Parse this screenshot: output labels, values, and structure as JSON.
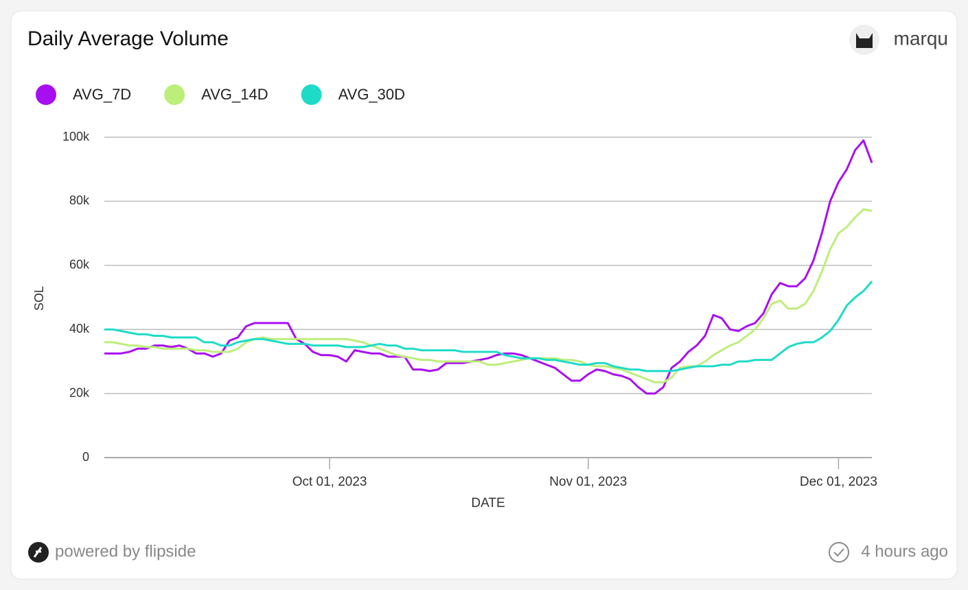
{
  "chart_data": {
    "type": "line",
    "title": "Daily Average Volume",
    "x_label": "DATE",
    "y_label": "SOL",
    "x": [
      "2023-09-04",
      "2023-09-05",
      "2023-09-06",
      "2023-09-07",
      "2023-09-08",
      "2023-09-09",
      "2023-09-10",
      "2023-09-11",
      "2023-09-12",
      "2023-09-13",
      "2023-09-14",
      "2023-09-15",
      "2023-09-16",
      "2023-09-17",
      "2023-09-18",
      "2023-09-19",
      "2023-09-20",
      "2023-09-21",
      "2023-09-22",
      "2023-09-23",
      "2023-09-24",
      "2023-09-25",
      "2023-09-26",
      "2023-09-27",
      "2023-09-28",
      "2023-09-29",
      "2023-09-30",
      "2023-10-01",
      "2023-10-02",
      "2023-10-03",
      "2023-10-04",
      "2023-10-05",
      "2023-10-06",
      "2023-10-07",
      "2023-10-08",
      "2023-10-09",
      "2023-10-10",
      "2023-10-11",
      "2023-10-12",
      "2023-10-13",
      "2023-10-14",
      "2023-10-15",
      "2023-10-16",
      "2023-10-17",
      "2023-10-18",
      "2023-10-19",
      "2023-10-20",
      "2023-10-21",
      "2023-10-22",
      "2023-10-23",
      "2023-10-24",
      "2023-10-25",
      "2023-10-26",
      "2023-10-27",
      "2023-10-28",
      "2023-10-29",
      "2023-10-30",
      "2023-10-31",
      "2023-11-01",
      "2023-11-02",
      "2023-11-03",
      "2023-11-04",
      "2023-11-05",
      "2023-11-06",
      "2023-11-07",
      "2023-11-08",
      "2023-11-09",
      "2023-11-10",
      "2023-11-11",
      "2023-11-12",
      "2023-11-13",
      "2023-11-14",
      "2023-11-15",
      "2023-11-16",
      "2023-11-17",
      "2023-11-18",
      "2023-11-19",
      "2023-11-20",
      "2023-11-21",
      "2023-11-22",
      "2023-11-23",
      "2023-11-24",
      "2023-11-25",
      "2023-11-26",
      "2023-11-27",
      "2023-11-28",
      "2023-11-29",
      "2023-11-30",
      "2023-12-01",
      "2023-12-02",
      "2023-12-03",
      "2023-12-04",
      "2023-12-05"
    ],
    "series": [
      {
        "name": "AVG_7D",
        "color": "#a80ff0",
        "values": [
          32500,
          32500,
          32500,
          33000,
          34000,
          34000,
          35000,
          35000,
          34500,
          35000,
          34000,
          32500,
          32500,
          31500,
          32500,
          36500,
          37500,
          41000,
          42000,
          42000,
          42000,
          42000,
          42000,
          37000,
          35500,
          33000,
          32000,
          32000,
          31500,
          30000,
          33500,
          33000,
          32500,
          32500,
          31500,
          31500,
          31500,
          27500,
          27500,
          27000,
          27500,
          29500,
          29500,
          29500,
          30000,
          30500,
          31000,
          32000,
          32500,
          32500,
          32000,
          31000,
          30000,
          29000,
          28000,
          26000,
          24000,
          24000,
          26000,
          27500,
          27000,
          26000,
          25500,
          24500,
          22000,
          20000,
          20000,
          22000,
          28000,
          30000,
          33000,
          35000,
          38000,
          44500,
          43500,
          40000,
          39500,
          41000,
          42000,
          45000,
          51000,
          54500,
          53500,
          53500,
          56000,
          61500,
          70000,
          80000,
          86000,
          90000,
          96000,
          99000,
          92000
        ]
      },
      {
        "name": "AVG_14D",
        "color": "#bdee7a",
        "values": [
          36000,
          36000,
          35500,
          35000,
          35000,
          34500,
          34500,
          34000,
          34000,
          34000,
          34000,
          33500,
          33500,
          33000,
          33000,
          33000,
          34000,
          36000,
          37000,
          37500,
          37000,
          37000,
          37000,
          37000,
          37000,
          37000,
          37000,
          37000,
          37000,
          37000,
          36500,
          36000,
          35000,
          34000,
          33000,
          32000,
          31500,
          31000,
          30500,
          30500,
          30000,
          30000,
          30000,
          30000,
          30000,
          30000,
          29000,
          29000,
          29500,
          30000,
          30500,
          31000,
          31000,
          31000,
          31000,
          30500,
          30500,
          30000,
          29000,
          28500,
          28500,
          28000,
          27500,
          26500,
          25500,
          24500,
          23500,
          23500,
          25000,
          28000,
          28500,
          28500,
          30000,
          32000,
          33500,
          35000,
          36000,
          38000,
          40000,
          43500,
          48000,
          49000,
          46500,
          46500,
          48000,
          52000,
          58000,
          65000,
          70000,
          72000,
          75000,
          77500,
          77000
        ]
      },
      {
        "name": "AVG_30D",
        "color": "#1edbc8",
        "values": [
          40000,
          40000,
          39500,
          39000,
          38500,
          38500,
          38000,
          38000,
          37500,
          37500,
          37500,
          37500,
          36000,
          36000,
          35000,
          35000,
          36000,
          36500,
          37000,
          37000,
          36500,
          36000,
          35500,
          35500,
          35500,
          35000,
          35000,
          35000,
          35000,
          34500,
          34500,
          34500,
          35000,
          35500,
          35000,
          35000,
          34000,
          34000,
          33500,
          33500,
          33500,
          33500,
          33500,
          33000,
          33000,
          33000,
          33000,
          33000,
          32000,
          31500,
          31000,
          31000,
          31000,
          30500,
          30500,
          30000,
          29500,
          29000,
          29000,
          29500,
          29500,
          28500,
          28000,
          27500,
          27500,
          27000,
          27000,
          27000,
          27000,
          27500,
          28000,
          28500,
          28500,
          28500,
          29000,
          29000,
          30000,
          30000,
          30500,
          30500,
          30500,
          32500,
          34500,
          35500,
          36000,
          36000,
          37500,
          39500,
          43000,
          47500,
          50000,
          52000,
          55000
        ]
      }
    ],
    "xlim": [
      "2023-09-04",
      "2023-12-05"
    ],
    "xticks": [
      {
        "value": "2023-10-01",
        "label": "Oct 01, 2023"
      },
      {
        "value": "2023-11-01",
        "label": "Nov 01, 2023"
      },
      {
        "value": "2023-12-01",
        "label": "Dec 01, 2023"
      }
    ],
    "ylim": [
      0,
      100000
    ],
    "yticks": [
      0,
      {
        "value": 20000,
        "label": "20k"
      },
      {
        "value": 40000,
        "label": "40k"
      },
      {
        "value": 60000,
        "label": "60k"
      },
      {
        "value": 80000,
        "label": "80k"
      },
      {
        "value": 100000,
        "label": "100k"
      }
    ],
    "grid": true,
    "legend": "top-left"
  },
  "user": "marqu",
  "footer": {
    "brand": "powered by flipside",
    "updated": "4 hours ago"
  }
}
